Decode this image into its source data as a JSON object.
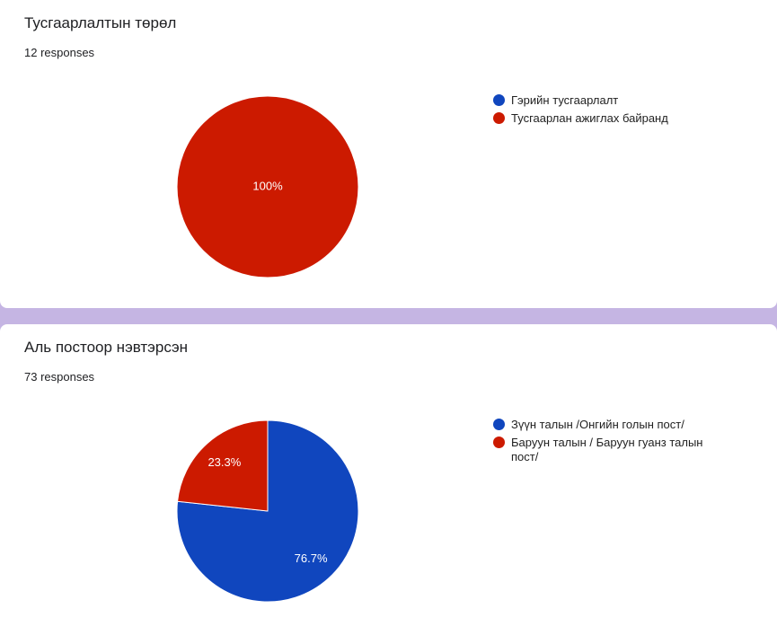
{
  "colors": {
    "blue": "#1046be",
    "red": "#cc1a00",
    "page_background": "#c5b5e3",
    "card_background": "#ffffff"
  },
  "chart_data": [
    {
      "type": "pie",
      "title": "Тусгаарлалтын төрөл",
      "responses_label": "12 responses",
      "legend_position": "right",
      "slices": [
        {
          "label": "Гэрийн тусгаарлалт",
          "value": 0,
          "value_label": "",
          "color": "#1046be"
        },
        {
          "label": "Тусгаарлан ажиглах байранд",
          "value": 100,
          "value_label": "100%",
          "color": "#cc1a00"
        }
      ]
    },
    {
      "type": "pie",
      "title": "Аль постоор нэвтэрсэн",
      "responses_label": "73 responses",
      "legend_position": "right",
      "slices": [
        {
          "label": "Зүүн талын /Онгийн голын пост/",
          "value": 76.7,
          "value_label": "76.7%",
          "color": "#1046be"
        },
        {
          "label": "Баруун талын / Баруун гуанз талын пост/",
          "value": 23.3,
          "value_label": "23.3%",
          "color": "#cc1a00"
        }
      ]
    }
  ]
}
